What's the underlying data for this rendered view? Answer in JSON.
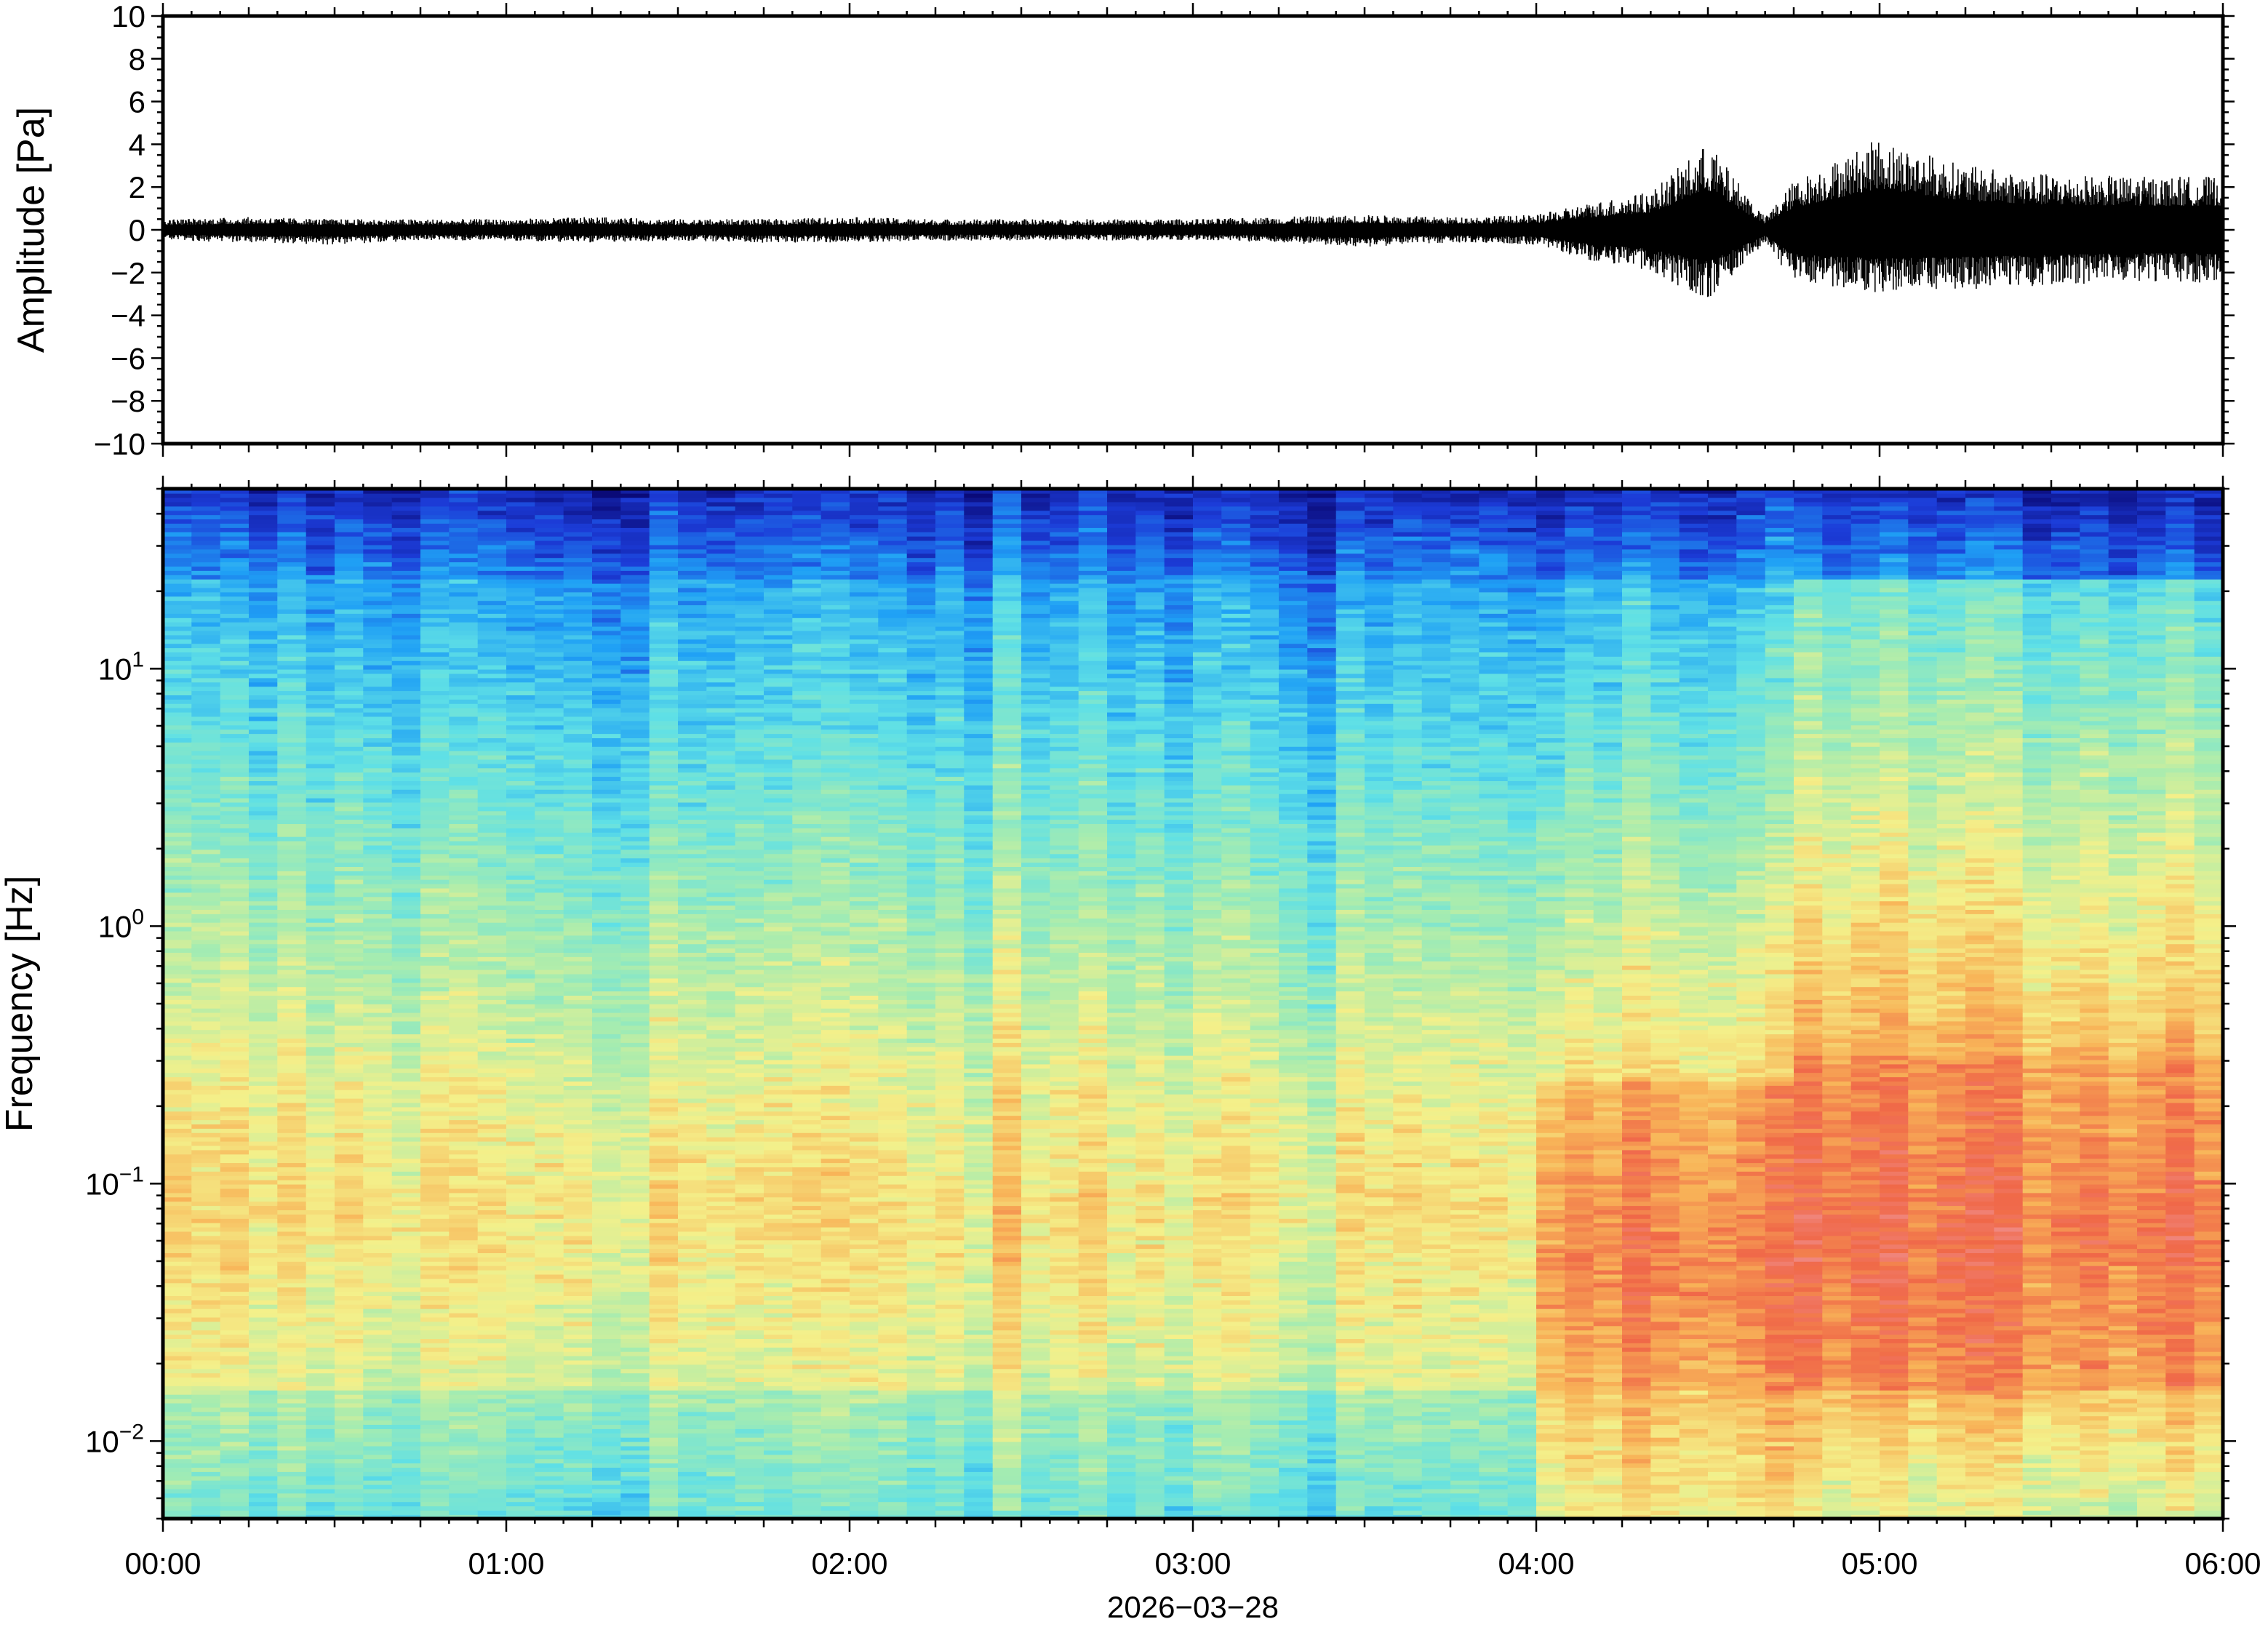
{
  "chart_data": [
    {
      "type": "line",
      "panel": "waveform",
      "ylabel": "Amplitude [Pa]",
      "ylim": [
        -10,
        10
      ],
      "yticks": [
        -10,
        -8,
        -6,
        -4,
        -2,
        0,
        2,
        4,
        6,
        8,
        10
      ],
      "ytick_labels": [
        "−10",
        "−8",
        "−6",
        "−4",
        "−2",
        "0",
        "2",
        "4",
        "6",
        "8",
        "10"
      ],
      "xlim": [
        "00:00",
        "06:00"
      ],
      "line_color": "#000000",
      "series": [
        {
          "values": [
            {
              "x": "00:00",
              "max": 0.5,
              "min": -0.5
            },
            {
              "x": "00:15",
              "max": 0.6,
              "min": -0.6
            },
            {
              "x": "00:30",
              "max": 0.5,
              "min": -0.7
            },
            {
              "x": "00:45",
              "max": 0.5,
              "min": -0.5
            },
            {
              "x": "01:00",
              "max": 0.5,
              "min": -0.5
            },
            {
              "x": "01:15",
              "max": 0.6,
              "min": -0.6
            },
            {
              "x": "01:30",
              "max": 0.5,
              "min": -0.5
            },
            {
              "x": "01:45",
              "max": 0.5,
              "min": -0.6
            },
            {
              "x": "02:00",
              "max": 0.6,
              "min": -0.6
            },
            {
              "x": "02:15",
              "max": 0.5,
              "min": -0.5
            },
            {
              "x": "02:30",
              "max": 0.5,
              "min": -0.5
            },
            {
              "x": "02:45",
              "max": 0.5,
              "min": -0.5
            },
            {
              "x": "03:00",
              "max": 0.5,
              "min": -0.5
            },
            {
              "x": "03:15",
              "max": 0.6,
              "min": -0.6
            },
            {
              "x": "03:30",
              "max": 0.7,
              "min": -0.8
            },
            {
              "x": "03:45",
              "max": 0.6,
              "min": -0.6
            },
            {
              "x": "04:00",
              "max": 0.7,
              "min": -0.7
            },
            {
              "x": "04:10",
              "max": 1.3,
              "min": -1.5
            },
            {
              "x": "04:20",
              "max": 1.8,
              "min": -2.0
            },
            {
              "x": "04:30",
              "max": 4.1,
              "min": -3.3
            },
            {
              "x": "04:40",
              "max": 0.6,
              "min": -0.6
            },
            {
              "x": "04:45",
              "max": 2.3,
              "min": -2.5
            },
            {
              "x": "05:00",
              "max": 4.3,
              "min": -3.0
            },
            {
              "x": "05:15",
              "max": 3.0,
              "min": -2.8
            },
            {
              "x": "05:30",
              "max": 2.6,
              "min": -2.6
            },
            {
              "x": "05:45",
              "max": 2.5,
              "min": -2.4
            },
            {
              "x": "06:00",
              "max": 2.5,
              "min": -2.5
            }
          ]
        }
      ]
    },
    {
      "type": "heatmap",
      "panel": "spectrogram",
      "ylabel": "Frequency [Hz]",
      "yscale": "log",
      "ylim_hz": [
        0.005,
        50
      ],
      "yticks_hz": [
        0.01,
        0.1,
        1,
        10
      ],
      "ytick_labels": [
        {
          "base": "10",
          "exp": "−2"
        },
        {
          "base": "10",
          "exp": "−1"
        },
        {
          "base": "10",
          "exp": "0"
        },
        {
          "base": "10",
          "exp": "1"
        }
      ],
      "xlabel": "2026−03−28",
      "xticks": [
        "00:00",
        "01:00",
        "02:00",
        "03:00",
        "04:00",
        "05:00",
        "06:00"
      ],
      "colormap": "jet-like",
      "colormap_stops": [
        "#0a0a78",
        "#1c3cd8",
        "#1fa0f5",
        "#5fe0e6",
        "#a6ecb0",
        "#f4f08a",
        "#f8b458",
        "#f06848",
        "#f09aa0"
      ],
      "regimes": [
        {
          "x_start": "00:00",
          "x_end": "04:00",
          "description_level": "low"
        },
        {
          "x_start": "04:00",
          "x_end": "04:45",
          "description_level": "elevated"
        },
        {
          "x_start": "04:45",
          "x_end": "06:00",
          "description_level": "high"
        }
      ]
    }
  ],
  "xaxis": {
    "tick_labels": [
      "00:00",
      "01:00",
      "02:00",
      "03:00",
      "04:00",
      "05:00",
      "06:00"
    ],
    "date_label": "2026−03−28"
  }
}
